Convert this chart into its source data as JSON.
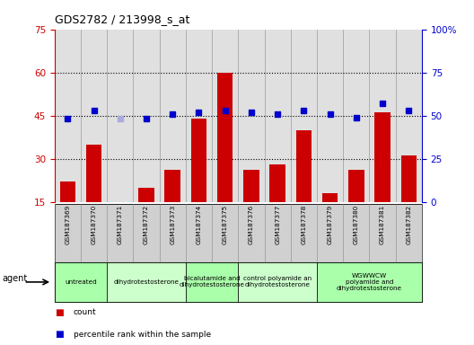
{
  "title": "GDS2782 / 213998_s_at",
  "samples": [
    "GSM187369",
    "GSM187370",
    "GSM187371",
    "GSM187372",
    "GSM187373",
    "GSM187374",
    "GSM187375",
    "GSM187376",
    "GSM187377",
    "GSM187378",
    "GSM187379",
    "GSM187380",
    "GSM187381",
    "GSM187382"
  ],
  "bar_values": [
    22,
    35,
    0,
    20,
    26,
    44,
    60,
    26,
    28,
    40,
    18,
    26,
    46,
    31
  ],
  "bar_absent": [
    0,
    0,
    14,
    0,
    0,
    0,
    0,
    0,
    0,
    0,
    0,
    0,
    0,
    0
  ],
  "rank_values": [
    48,
    53,
    0,
    48,
    51,
    52,
    53,
    52,
    51,
    53,
    51,
    49,
    57,
    53
  ],
  "rank_absent": [
    0,
    0,
    48,
    0,
    0,
    0,
    0,
    0,
    0,
    0,
    0,
    0,
    0,
    0
  ],
  "bar_color": "#cc0000",
  "bar_absent_color": "#ffb0b0",
  "rank_color": "#0000cc",
  "rank_absent_color": "#aaaadd",
  "agent_groups": [
    {
      "label": "untreated",
      "start": 0,
      "end": 1,
      "color": "#aaffaa"
    },
    {
      "label": "dihydrotestosterone",
      "start": 2,
      "end": 4,
      "color": "#ccffcc"
    },
    {
      "label": "bicalutamide and\ndihydrotestosterone",
      "start": 5,
      "end": 6,
      "color": "#aaffaa"
    },
    {
      "label": "control polyamide an\ndihydrotestosterone",
      "start": 7,
      "end": 9,
      "color": "#ccffcc"
    },
    {
      "label": "WGWWCW\npolyamide and\ndihydrotestosterone",
      "start": 10,
      "end": 13,
      "color": "#aaffaa"
    }
  ],
  "ylim_left": [
    15,
    75
  ],
  "ylim_right": [
    0,
    100
  ],
  "yticks_left": [
    15,
    30,
    45,
    60,
    75
  ],
  "yticks_right": [
    0,
    25,
    50,
    75,
    100
  ],
  "ytick_labels_right": [
    "0",
    "25",
    "50",
    "75",
    "100%"
  ],
  "grid_values": [
    30,
    45,
    60
  ],
  "plot_bg": "#ffffff",
  "axes_bg": "#e0e0e0",
  "sample_label_bg": "#d0d0d0"
}
